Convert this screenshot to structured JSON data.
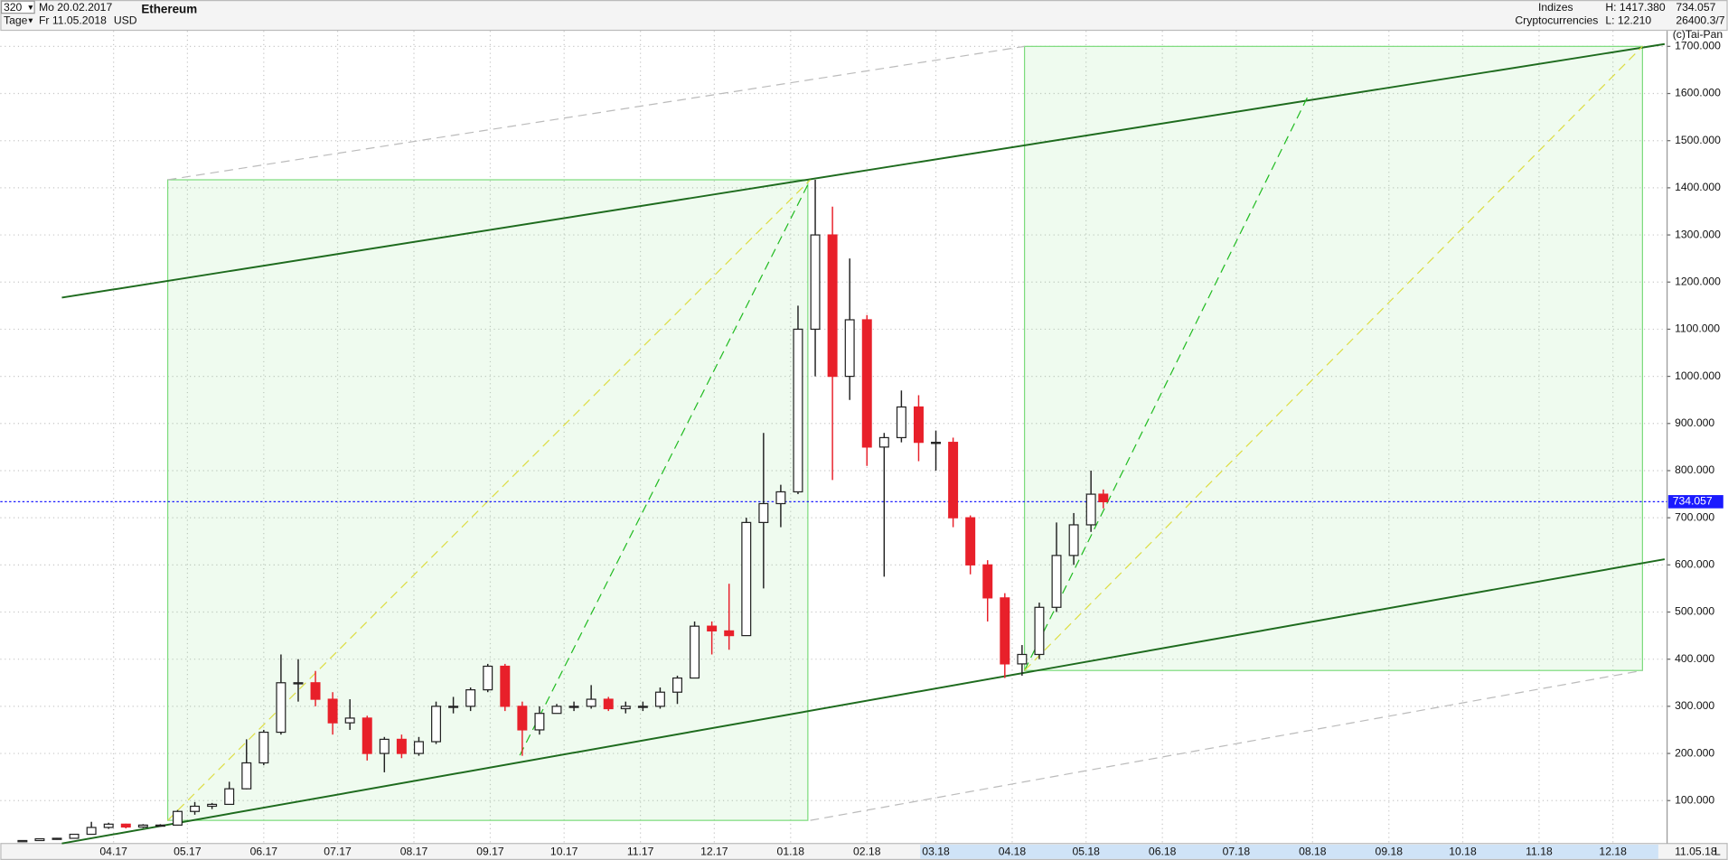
{
  "header": {
    "count": "320",
    "unit": "Tage",
    "from": "Mo 20.02.2017",
    "to": "Fr 11.05.2018",
    "currency": "USD",
    "group": "Indizes",
    "subgroup": "Cryptocurrencies",
    "high": "H: 1417.380",
    "low": "L: 12.210",
    "code": "26400.3/7",
    "copyright": "(c)Tai-Pan",
    "end_date": "11.05.18",
    "scale_flag": "L"
  },
  "chart_data": {
    "type": "candlestick",
    "title": "Ethereum",
    "xlim": [
      -6,
      671
    ],
    "ylim": [
      9,
      1733
    ],
    "xticks": [
      {
        "value": 40,
        "label": "04.17"
      },
      {
        "value": 70,
        "label": "05.17"
      },
      {
        "value": 101,
        "label": "06.17"
      },
      {
        "value": 131,
        "label": "07.17"
      },
      {
        "value": 162,
        "label": "08.17"
      },
      {
        "value": 193,
        "label": "09.17"
      },
      {
        "value": 223,
        "label": "10.17"
      },
      {
        "value": 254,
        "label": "11.17"
      },
      {
        "value": 284,
        "label": "12.17"
      },
      {
        "value": 315,
        "label": "01.18"
      },
      {
        "value": 346,
        "label": "02.18"
      },
      {
        "value": 374,
        "label": "03.18"
      },
      {
        "value": 405,
        "label": "04.18"
      },
      {
        "value": 435,
        "label": "05.18"
      },
      {
        "value": 466,
        "label": "06.18"
      },
      {
        "value": 496,
        "label": "07.18"
      },
      {
        "value": 527,
        "label": "08.18"
      },
      {
        "value": 558,
        "label": "09.18"
      },
      {
        "value": 588,
        "label": "10.18"
      },
      {
        "value": 619,
        "label": "11.18"
      },
      {
        "value": 649,
        "label": "12.18"
      }
    ],
    "yticks": [
      {
        "value": 100,
        "label": "100.000"
      },
      {
        "value": 200,
        "label": "200.000"
      },
      {
        "value": 300,
        "label": "300.000"
      },
      {
        "value": 400,
        "label": "400.000"
      },
      {
        "value": 500,
        "label": "500.000"
      },
      {
        "value": 600,
        "label": "600.000"
      },
      {
        "value": 700,
        "label": "700.000"
      },
      {
        "value": 800,
        "label": "800.000"
      },
      {
        "value": 900,
        "label": "900.000"
      },
      {
        "value": 1000,
        "label": "1000.000"
      },
      {
        "value": 1100,
        "label": "1100.000"
      },
      {
        "value": 1200,
        "label": "1200.000"
      },
      {
        "value": 1300,
        "label": "1300.000"
      },
      {
        "value": 1400,
        "label": "1400.000"
      },
      {
        "value": 1500,
        "label": "1500.000"
      },
      {
        "value": 1600,
        "label": "1600.000"
      },
      {
        "value": 1700,
        "label": "1700.000"
      }
    ],
    "grid": true,
    "up_color": "#222222",
    "down_color": "#e8202a",
    "current": 734.057,
    "current_color": "#1a1aff",
    "x": [
      3,
      10,
      17,
      24,
      31,
      38,
      45,
      52,
      59,
      66,
      73,
      80,
      87,
      94,
      101,
      108,
      115,
      122,
      129,
      136,
      143,
      150,
      157,
      164,
      171,
      178,
      185,
      192,
      199,
      206,
      213,
      220,
      227,
      234,
      241,
      248,
      255,
      262,
      269,
      276,
      283,
      290,
      297,
      304,
      311,
      318,
      325,
      332,
      339,
      346,
      353,
      360,
      367,
      374,
      381,
      388,
      395,
      402,
      409,
      416,
      423,
      430,
      437,
      442
    ],
    "open": [
      12.7,
      15.2,
      19,
      20,
      28.5,
      43,
      50,
      44,
      48,
      48,
      77,
      88,
      92,
      125,
      180,
      245,
      350,
      350,
      315,
      265,
      275,
      200,
      230,
      200,
      225,
      300,
      300,
      335,
      385,
      300,
      250,
      285,
      300,
      300,
      315,
      295,
      300,
      300,
      330,
      360,
      470,
      460,
      450,
      690,
      730,
      755,
      1100,
      1300,
      1000,
      1120,
      850,
      870,
      935,
      860,
      860,
      700,
      600,
      530,
      390,
      410,
      510,
      620,
      685,
      750
    ],
    "high": [
      16,
      19.5,
      21,
      29,
      55,
      53,
      51,
      50,
      50,
      80,
      97,
      95,
      140,
      230,
      250,
      410,
      400,
      375,
      330,
      315,
      280,
      235,
      240,
      235,
      310,
      320,
      340,
      390,
      390,
      310,
      300,
      305,
      310,
      345,
      320,
      310,
      310,
      340,
      365,
      480,
      480,
      560,
      700,
      880,
      770,
      1150,
      1417,
      1360,
      1250,
      1130,
      880,
      970,
      960,
      885,
      870,
      705,
      610,
      540,
      430,
      520,
      690,
      710,
      800,
      760
    ],
    "low": [
      12.2,
      15,
      17,
      19,
      28,
      40,
      41,
      42,
      45,
      47,
      70,
      82,
      91,
      124,
      175,
      240,
      310,
      300,
      240,
      250,
      185,
      160,
      190,
      195,
      220,
      285,
      290,
      330,
      290,
      195,
      240,
      285,
      290,
      295,
      290,
      285,
      290,
      295,
      305,
      360,
      410,
      420,
      450,
      550,
      680,
      750,
      1000,
      780,
      950,
      810,
      575,
      860,
      820,
      800,
      680,
      580,
      480,
      360,
      365,
      400,
      500,
      600,
      670,
      720
    ],
    "close": [
      15.2,
      19,
      20,
      28.5,
      43,
      50,
      44,
      48,
      48,
      77,
      88,
      92,
      125,
      180,
      245,
      350,
      350,
      315,
      265,
      275,
      200,
      230,
      200,
      225,
      300,
      300,
      335,
      385,
      300,
      250,
      285,
      300,
      300,
      315,
      295,
      300,
      300,
      330,
      360,
      470,
      460,
      450,
      690,
      730,
      755,
      1100,
      1300,
      1000,
      1120,
      850,
      870,
      935,
      860,
      860,
      700,
      600,
      530,
      390,
      410,
      510,
      620,
      685,
      750,
      734.057
    ],
    "boxes": [
      {
        "x": [
          62,
          322
        ],
        "y": [
          58,
          1417
        ]
      },
      {
        "x": [
          410,
          661
        ],
        "y": [
          376,
          1700
        ]
      }
    ],
    "box_color": "#7ddc7d",
    "lines": [
      {
        "x": [
          19,
          670
        ],
        "y": [
          1167,
          1705
        ],
        "color": "#1e6b1e",
        "dash": false
      },
      {
        "x": [
          19,
          670
        ],
        "y": [
          9,
          612
        ],
        "color": "#1e6b1e",
        "dash": false
      },
      {
        "x": [
          205,
          323
        ],
        "y": [
          196,
          1417
        ],
        "color": "#22bb22",
        "dash": true
      },
      {
        "x": [
          410,
          525
        ],
        "y": [
          376,
          1593
        ],
        "color": "#22bb22",
        "dash": true
      },
      {
        "x": [
          62,
          323
        ],
        "y": [
          58,
          1417
        ],
        "color": "#dddd44",
        "dash": true
      },
      {
        "x": [
          410,
          661
        ],
        "y": [
          376,
          1700
        ],
        "color": "#dddd44",
        "dash": true
      },
      {
        "x": [
          62,
          410
        ],
        "y": [
          1417,
          1700
        ],
        "color": "#bbbbbb",
        "dash": true
      },
      {
        "x": [
          323,
          661
        ],
        "y": [
          58,
          376
        ],
        "color": "#bbbbbb",
        "dash": true
      }
    ]
  }
}
